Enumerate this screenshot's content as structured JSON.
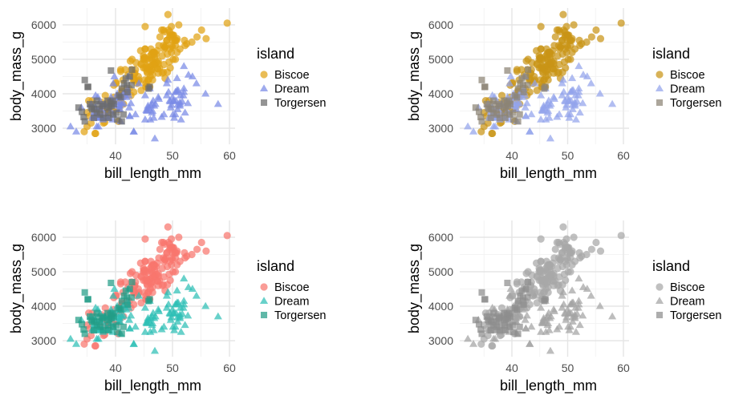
{
  "chart_data": [
    {
      "type": "scatter",
      "title": "",
      "xlabel": "bill_length_mm",
      "ylabel": "body_mass_g",
      "xlim": [
        31.5,
        61
      ],
      "ylim": [
        2600,
        6500
      ],
      "xticks": [
        "40",
        "50",
        "60"
      ],
      "yticks": [
        "3000",
        "4000",
        "5000",
        "6000"
      ],
      "grid": true,
      "legend": {
        "title": "island",
        "position": "right",
        "entries": [
          "Biscoe",
          "Dream",
          "Torgersen"
        ]
      },
      "palette": {
        "Biscoe": "#E1A213",
        "Dream": "#7A8BE6",
        "Torgersen": "#6B6B6B"
      },
      "shapes": {
        "Biscoe": "circle",
        "Dream": "triangle",
        "Torgersen": "square"
      }
    },
    {
      "type": "scatter",
      "title": "",
      "xlabel": "bill_length_mm",
      "ylabel": "body_mass_g",
      "xlim": [
        31.5,
        61
      ],
      "ylim": [
        2600,
        6500
      ],
      "xticks": [
        "40",
        "50",
        "60"
      ],
      "yticks": [
        "3000",
        "4000",
        "5000",
        "6000"
      ],
      "grid": true,
      "legend": {
        "title": "island",
        "position": "right",
        "entries": [
          "Biscoe",
          "Dream",
          "Torgersen"
        ]
      },
      "palette": {
        "Biscoe": "#C99416",
        "Dream": "#93A3EC",
        "Torgersen": "#8C8475"
      },
      "shapes": {
        "Biscoe": "circle",
        "Dream": "triangle",
        "Torgersen": "square"
      }
    },
    {
      "type": "scatter",
      "title": "",
      "xlabel": "bill_length_mm",
      "ylabel": "body_mass_g",
      "xlim": [
        31.5,
        61
      ],
      "ylim": [
        2600,
        6500
      ],
      "xticks": [
        "40",
        "50",
        "60"
      ],
      "yticks": [
        "3000",
        "4000",
        "5000",
        "6000"
      ],
      "grid": true,
      "legend": {
        "title": "island",
        "position": "right",
        "entries": [
          "Biscoe",
          "Dream",
          "Torgersen"
        ]
      },
      "palette": {
        "Biscoe": "#F8766D",
        "Dream": "#2EBFB5",
        "Torgersen": "#239C86"
      },
      "shapes": {
        "Biscoe": "circle",
        "Dream": "triangle",
        "Torgersen": "square"
      }
    },
    {
      "type": "scatter",
      "title": "",
      "xlabel": "bill_length_mm",
      "ylabel": "body_mass_g",
      "xlim": [
        31.5,
        61
      ],
      "ylim": [
        2600,
        6500
      ],
      "xticks": [
        "40",
        "50",
        "60"
      ],
      "yticks": [
        "3000",
        "4000",
        "5000",
        "6000"
      ],
      "grid": true,
      "legend": {
        "title": "island",
        "position": "right",
        "entries": [
          "Biscoe",
          "Dream",
          "Torgersen"
        ]
      },
      "palette": {
        "Biscoe": "#A8A8A8",
        "Dream": "#A3A3A3",
        "Torgersen": "#8E8E8E"
      },
      "shapes": {
        "Biscoe": "circle",
        "Dream": "triangle",
        "Torgersen": "square"
      }
    }
  ],
  "points": {
    "Biscoe": [
      [
        37.8,
        3400
      ],
      [
        37.7,
        3600
      ],
      [
        35.9,
        3800
      ],
      [
        38.2,
        3950
      ],
      [
        38.8,
        3800
      ],
      [
        35.3,
        3800
      ],
      [
        40.6,
        3550
      ],
      [
        40.5,
        3200
      ],
      [
        37.9,
        3150
      ],
      [
        40.5,
        3950
      ],
      [
        39.6,
        3500
      ],
      [
        40.1,
        4300
      ],
      [
        35,
        3450
      ],
      [
        42,
        4050
      ],
      [
        34.5,
        2900
      ],
      [
        41.4,
        3700
      ],
      [
        39,
        3550
      ],
      [
        40.6,
        3800
      ],
      [
        36.5,
        2850
      ],
      [
        37.6,
        3750
      ],
      [
        35.7,
        3150
      ],
      [
        41.3,
        4400
      ],
      [
        37.6,
        3600
      ],
      [
        41.1,
        4050
      ],
      [
        36.4,
        2850
      ],
      [
        41.6,
        3950
      ],
      [
        35.5,
        3350
      ],
      [
        41.1,
        4100
      ],
      [
        35,
        3050
      ],
      [
        41.5,
        4000
      ],
      [
        38.6,
        3450
      ],
      [
        43.2,
        4050
      ],
      [
        38.1,
        3425
      ],
      [
        45.6,
        4600
      ],
      [
        39.7,
        4250
      ],
      [
        42.2,
        4550
      ],
      [
        40.9,
        4700
      ],
      [
        39.7,
        3900
      ],
      [
        38.1,
        3175
      ],
      [
        40.1,
        4325
      ],
      [
        46.1,
        4500
      ],
      [
        50,
        5700
      ],
      [
        48.7,
        4450
      ],
      [
        50,
        5700
      ],
      [
        47.6,
        5400
      ],
      [
        46.5,
        4550
      ],
      [
        45.4,
        4800
      ],
      [
        46.7,
        5200
      ],
      [
        43.3,
        4400
      ],
      [
        46.8,
        5150
      ],
      [
        40.9,
        4650
      ],
      [
        49,
        5550
      ],
      [
        45.5,
        4650
      ],
      [
        48.4,
        5850
      ],
      [
        45.8,
        4200
      ],
      [
        49.3,
        5850
      ],
      [
        42,
        4150
      ],
      [
        49.2,
        6300
      ],
      [
        46.2,
        4800
      ],
      [
        48.7,
        5350
      ],
      [
        50.2,
        5700
      ],
      [
        45.1,
        5000
      ],
      [
        46.5,
        4400
      ],
      [
        46.3,
        5050
      ],
      [
        42.9,
        5000
      ],
      [
        46.1,
        5100
      ],
      [
        44.5,
        4100
      ],
      [
        47.8,
        5650
      ],
      [
        48.2,
        4600
      ],
      [
        50,
        5550
      ],
      [
        47.3,
        5250
      ],
      [
        42.8,
        4700
      ],
      [
        45.1,
        5050
      ],
      [
        59.6,
        6050
      ],
      [
        49.1,
        5150
      ],
      [
        48.4,
        5400
      ],
      [
        42.6,
        4950
      ],
      [
        44.4,
        5250
      ],
      [
        44,
        4350
      ],
      [
        48.7,
        5350
      ],
      [
        42.7,
        3950
      ],
      [
        49.6,
        5700
      ],
      [
        45.3,
        4300
      ],
      [
        49.6,
        4750
      ],
      [
        50.5,
        5550
      ],
      [
        43.6,
        4900
      ],
      [
        45.5,
        4200
      ],
      [
        50.5,
        5400
      ],
      [
        44.9,
        5100
      ],
      [
        45.2,
        5300
      ],
      [
        46.6,
        4850
      ],
      [
        48.5,
        5300
      ],
      [
        45.1,
        4400
      ],
      [
        50.1,
        5000
      ],
      [
        46.5,
        4900
      ],
      [
        45,
        5050
      ],
      [
        43.8,
        4300
      ],
      [
        45.5,
        5000
      ],
      [
        43.2,
        4450
      ],
      [
        50.4,
        5550
      ],
      [
        45.3,
        4200
      ],
      [
        46.2,
        5300
      ],
      [
        45.7,
        4400
      ],
      [
        54.3,
        5650
      ],
      [
        45.8,
        4700
      ],
      [
        49.8,
        5700
      ],
      [
        46.2,
        4650
      ],
      [
        49.5,
        5800
      ],
      [
        43.5,
        4700
      ],
      [
        50.7,
        5550
      ],
      [
        47.7,
        4750
      ],
      [
        46.4,
        5000
      ],
      [
        48.2,
        5100
      ],
      [
        46.5,
        5200
      ],
      [
        46.4,
        4700
      ],
      [
        48.6,
        5800
      ],
      [
        47.5,
        4600
      ],
      [
        51.1,
        6000
      ],
      [
        45.2,
        4750
      ],
      [
        45.2,
        5950
      ],
      [
        49.1,
        4625
      ],
      [
        52.5,
        5450
      ],
      [
        47.4,
        4725
      ],
      [
        50,
        5350
      ],
      [
        44.9,
        4750
      ],
      [
        50.8,
        5600
      ],
      [
        43.4,
        4600
      ],
      [
        51.3,
        5300
      ],
      [
        47.5,
        4875
      ],
      [
        52.1,
        5550
      ],
      [
        47.5,
        4950
      ],
      [
        52.2,
        5400
      ],
      [
        45.5,
        4750
      ],
      [
        49.5,
        5650
      ],
      [
        44.5,
        4850
      ],
      [
        50.8,
        5200
      ],
      [
        49.4,
        4925
      ],
      [
        46.9,
        4875
      ],
      [
        48.4,
        4625
      ],
      [
        48.5,
        4850
      ],
      [
        47.2,
        4925
      ],
      [
        41.7,
        4700
      ],
      [
        46.8,
        4850
      ],
      [
        55.1,
        5850
      ],
      [
        44.5,
        4875
      ],
      [
        49.9,
        5400
      ],
      [
        50.5,
        5000
      ],
      [
        46.3,
        5150
      ],
      [
        55.9,
        5600
      ],
      [
        49.6,
        5300
      ],
      [
        44.9,
        5000
      ],
      [
        49.8,
        5200
      ],
      [
        45.2,
        5300
      ],
      [
        53.4,
        5500
      ],
      [
        46.4,
        4700
      ],
      [
        49,
        5550
      ],
      [
        42.4,
        4150
      ],
      [
        46.8,
        5200
      ],
      [
        41.5,
        4000
      ],
      [
        48.8,
        5400
      ],
      [
        47.1,
        5150
      ],
      [
        43.3,
        4575
      ],
      [
        45.3,
        5000
      ],
      [
        48.1,
        5850
      ],
      [
        43.1,
        4400
      ],
      [
        49.8,
        5950
      ],
      [
        45.8,
        4400
      ],
      [
        47.4,
        4725
      ],
      [
        44.1,
        4400
      ],
      [
        46,
        4200
      ],
      [
        45.5,
        4800
      ],
      [
        46.9,
        5050
      ],
      [
        44,
        4500
      ]
    ],
    "Dream": [
      [
        39.5,
        3800
      ],
      [
        37.2,
        3300
      ],
      [
        39.5,
        3250
      ],
      [
        40.9,
        3900
      ],
      [
        36.4,
        3300
      ],
      [
        39.2,
        3900
      ],
      [
        38.8,
        3300
      ],
      [
        42.2,
        4050
      ],
      [
        37.6,
        3325
      ],
      [
        39.8,
        4500
      ],
      [
        36.5,
        3950
      ],
      [
        40.8,
        3550
      ],
      [
        36,
        3300
      ],
      [
        44.1,
        4300
      ],
      [
        37,
        3050
      ],
      [
        39.6,
        4300
      ],
      [
        41.1,
        3900
      ],
      [
        37.5,
        3550
      ],
      [
        36,
        3350
      ],
      [
        42.3,
        4500
      ],
      [
        39.6,
        3750
      ],
      [
        40.7,
        3650
      ],
      [
        37.3,
        3350
      ],
      [
        41.4,
        3725
      ],
      [
        36.7,
        3050
      ],
      [
        41.9,
        3900
      ],
      [
        37.6,
        3350
      ],
      [
        39.2,
        3500
      ],
      [
        38.1,
        3700
      ],
      [
        40.2,
        3900
      ],
      [
        39.7,
        3700
      ],
      [
        40.6,
        3550
      ],
      [
        32.1,
        3050
      ],
      [
        40.7,
        3900
      ],
      [
        37.3,
        3775
      ],
      [
        39.2,
        3800
      ],
      [
        36.6,
        3400
      ],
      [
        40.3,
        4000
      ],
      [
        36.2,
        3475
      ],
      [
        42.1,
        4150
      ],
      [
        38.5,
        3325
      ],
      [
        39.7,
        3650
      ],
      [
        37.7,
        3650
      ],
      [
        39.6,
        3400
      ],
      [
        34,
        3600
      ],
      [
        42.7,
        3725
      ],
      [
        37.2,
        3300
      ],
      [
        39,
        3700
      ],
      [
        36.9,
        3400
      ],
      [
        41.1,
        3700
      ],
      [
        33.1,
        2900
      ],
      [
        40.8,
        3750
      ],
      [
        36.5,
        3600
      ],
      [
        38.2,
        3675
      ],
      [
        38.1,
        3425
      ],
      [
        40.2,
        3750
      ],
      [
        37.8,
        3250
      ],
      [
        42.3,
        3950
      ],
      [
        36.9,
        3900
      ],
      [
        43.2,
        2900
      ],
      [
        37.3,
        3600
      ],
      [
        40.7,
        3650
      ],
      [
        35.7,
        3700
      ],
      [
        41.3,
        4000
      ],
      [
        36.4,
        3600
      ],
      [
        41.5,
        4000
      ],
      [
        46.5,
        3500
      ],
      [
        50,
        3900
      ],
      [
        51.3,
        3650
      ],
      [
        45.4,
        3525
      ],
      [
        52.7,
        3725
      ],
      [
        45.2,
        3950
      ],
      [
        46.1,
        3250
      ],
      [
        51.3,
        3750
      ],
      [
        46,
        4150
      ],
      [
        51.3,
        3700
      ],
      [
        46.6,
        3800
      ],
      [
        51.7,
        3775
      ],
      [
        47,
        3700
      ],
      [
        52,
        4050
      ],
      [
        45.9,
        3575
      ],
      [
        50.5,
        4050
      ],
      [
        50.3,
        3300
      ],
      [
        58,
        3700
      ],
      [
        46.4,
        3450
      ],
      [
        49.2,
        4400
      ],
      [
        42.4,
        3600
      ],
      [
        48.5,
        3400
      ],
      [
        43.2,
        2900
      ],
      [
        50.6,
        3800
      ],
      [
        46.7,
        3300
      ],
      [
        52,
        4150
      ],
      [
        50.5,
        3400
      ],
      [
        49.5,
        3800
      ],
      [
        46.4,
        3700
      ],
      [
        52.8,
        4550
      ],
      [
        40.9,
        3200
      ],
      [
        54.2,
        4300
      ],
      [
        42.5,
        3350
      ],
      [
        51,
        4100
      ],
      [
        49.7,
        3600
      ],
      [
        47.5,
        3900
      ],
      [
        47.6,
        3850
      ],
      [
        52,
        4800
      ],
      [
        46.9,
        2700
      ],
      [
        53.5,
        4500
      ],
      [
        49,
        3950
      ],
      [
        46.2,
        3650
      ],
      [
        50.9,
        3550
      ],
      [
        45.5,
        3500
      ],
      [
        50.9,
        3675
      ],
      [
        50.8,
        4450
      ],
      [
        50.1,
        3400
      ],
      [
        49,
        4300
      ],
      [
        51.5,
        3250
      ],
      [
        49.8,
        3675
      ],
      [
        48.1,
        3325
      ],
      [
        51.4,
        3950
      ],
      [
        45.7,
        3600
      ],
      [
        50.7,
        4050
      ],
      [
        42.5,
        3350
      ],
      [
        52.2,
        3450
      ],
      [
        45.2,
        3250
      ],
      [
        49.3,
        4050
      ],
      [
        50.2,
        3800
      ],
      [
        45.6,
        3525
      ],
      [
        51.9,
        3950
      ],
      [
        46.8,
        3650
      ],
      [
        45.7,
        3650
      ],
      [
        55.8,
        4000
      ],
      [
        43.5,
        3400
      ],
      [
        49.6,
        3775
      ],
      [
        50.8,
        4100
      ],
      [
        50.2,
        3775
      ]
    ],
    "Torgersen": [
      [
        39.1,
        3750
      ],
      [
        39.5,
        3800
      ],
      [
        40.3,
        3250
      ],
      [
        36.7,
        3450
      ],
      [
        39.3,
        3650
      ],
      [
        38.9,
        3625
      ],
      [
        39.2,
        4675
      ],
      [
        34.1,
        3475
      ],
      [
        42,
        4250
      ],
      [
        37.8,
        3300
      ],
      [
        37.8,
        3700
      ],
      [
        41.1,
        3200
      ],
      [
        38.6,
        3800
      ],
      [
        34.6,
        4400
      ],
      [
        36.6,
        3700
      ],
      [
        38.7,
        3450
      ],
      [
        42.5,
        4500
      ],
      [
        34.4,
        3325
      ],
      [
        46,
        4200
      ],
      [
        35.9,
        3550
      ],
      [
        41.8,
        4450
      ],
      [
        33.5,
        3600
      ],
      [
        39.7,
        3700
      ],
      [
        39.6,
        3400
      ],
      [
        45.8,
        4150
      ],
      [
        35.5,
        3700
      ],
      [
        42.8,
        4250
      ],
      [
        40.9,
        3900
      ],
      [
        37.2,
        3550
      ],
      [
        36.2,
        3550
      ],
      [
        42.1,
        4050
      ],
      [
        34.6,
        3200
      ],
      [
        42.9,
        4700
      ],
      [
        36.7,
        3800
      ],
      [
        35.1,
        4200
      ],
      [
        38.6,
        3600
      ],
      [
        37.3,
        3400
      ],
      [
        35.7,
        3600
      ],
      [
        41.1,
        4150
      ],
      [
        36.2,
        3300
      ],
      [
        37.7,
        3650
      ],
      [
        40.2,
        3450
      ],
      [
        41.4,
        3400
      ],
      [
        35.2,
        4200
      ],
      [
        40.6,
        3950
      ],
      [
        38.8,
        3300
      ],
      [
        41.5,
        4300
      ]
    ]
  }
}
